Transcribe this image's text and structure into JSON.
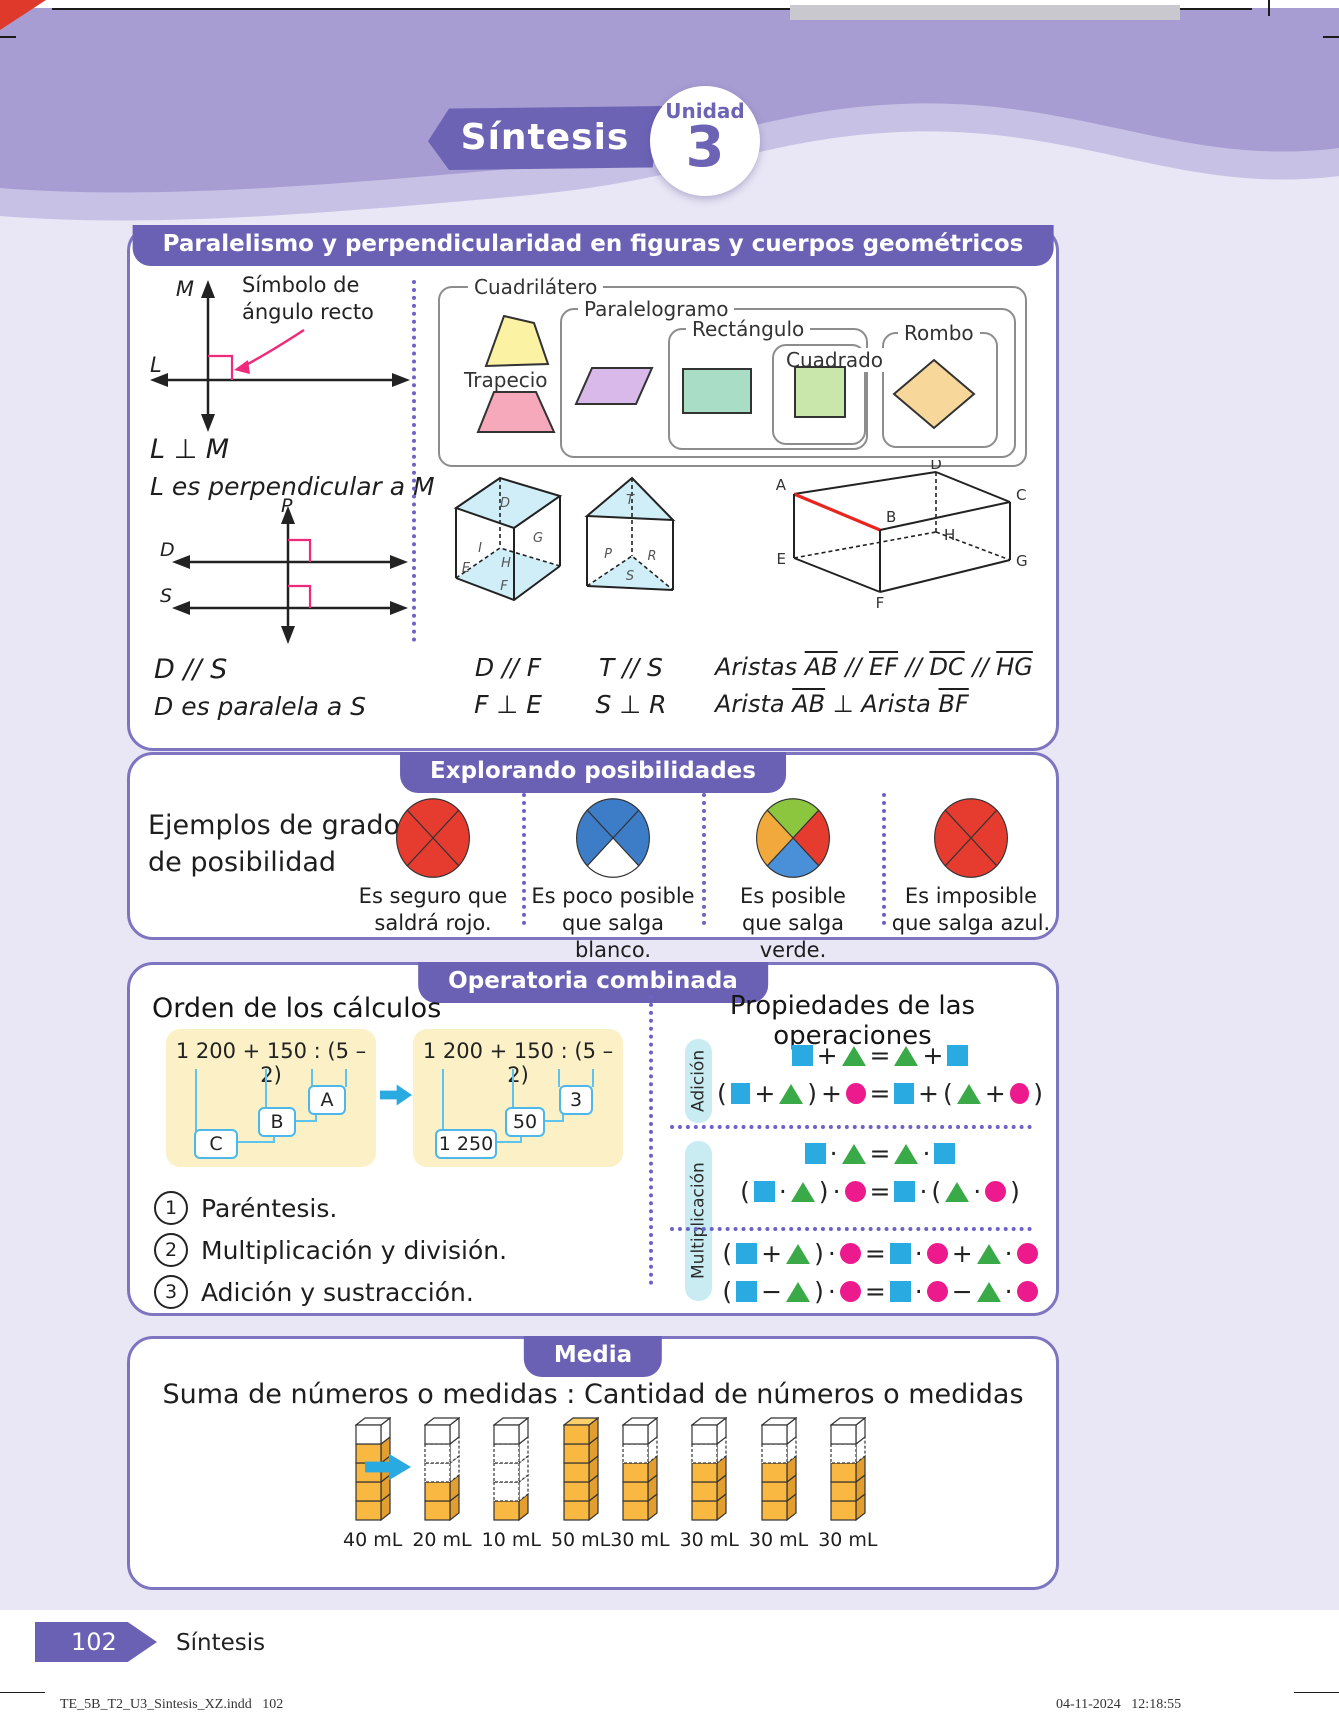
{
  "header": {
    "banner": "Síntesis",
    "unit_label": "Unidad",
    "unit_number": "3"
  },
  "section_geometry": {
    "title": "Paralelismo y perpendicularidad en figuras y cuerpos geométricos",
    "perp": {
      "m": "M",
      "l": "L",
      "ann1": "Símbolo de",
      "ann2": "ángulo recto",
      "relation": "L ⊥ M",
      "sentence": "L es perpendicular a M"
    },
    "para": {
      "p": "P",
      "d": "D",
      "s": "S",
      "relation": "D // S",
      "sentence": "D es paralela a S"
    },
    "classification": {
      "cuadrilatero": "Cuadrilátero",
      "trapecio": "Trapecio",
      "paralelogramo": "Paralelogramo",
      "rectangulo": "Rectángulo",
      "cuadrado": "Cuadrado",
      "rombo": "Rombo"
    },
    "cuboid": {
      "f_top": "D",
      "f_i": "I",
      "f_g": "G",
      "f_e": "E",
      "f_h": "H",
      "f_bottom": "F",
      "rel1": "D // F",
      "rel2": "F ⊥ E"
    },
    "triprism": {
      "f_top": "T",
      "f_p": "P",
      "f_r": "R",
      "f_bottom": "S",
      "rel1": "T // S",
      "rel2": "S ⊥ R"
    },
    "edgebox": {
      "a": "A",
      "b": "B",
      "c": "C",
      "d": "D",
      "e": "E",
      "f": "F",
      "g": "G",
      "h": "H",
      "highlight": "#e8251f",
      "label1": "Aristas",
      "e1": "AB",
      "par": "//",
      "e2": "EF",
      "e3": "DC",
      "e4": "HG",
      "label2a": "Arista",
      "e5": "AB",
      "perp": "⊥",
      "label2b": "Arista",
      "e6": "BF"
    }
  },
  "section_possibility": {
    "title": "Explorando posibilidades",
    "intro1": "Ejemplos de grados",
    "intro2": "de posibilidad",
    "spinners": [
      {
        "cap1": "Es seguro que",
        "cap2": "saldrá rojo.",
        "colors": {
          "top": "#e63c2f",
          "right": "#e63c2f",
          "bottom": "#e63c2f",
          "left": "#e63c2f"
        }
      },
      {
        "cap1": "Es poco posible",
        "cap2": "que salga blanco.",
        "colors": {
          "top": "#3d7dc8",
          "right": "#3d7dc8",
          "bottom": "#ffffff",
          "left": "#3d7dc8"
        }
      },
      {
        "cap1": "Es posible",
        "cap2": "que salga verde.",
        "colors": {
          "top": "#8cc63f",
          "right": "#e63c2f",
          "bottom": "#4a90d9",
          "left": "#f2a93b"
        }
      },
      {
        "cap1": "Es imposible",
        "cap2": "que salga azul.",
        "colors": {
          "top": "#e63c2f",
          "right": "#e63c2f",
          "bottom": "#e63c2f",
          "left": "#e63c2f"
        }
      }
    ]
  },
  "section_operations": {
    "title": "Operatoria combinada",
    "order_heading": "Orden de los cálculos",
    "expression": "1 200 + 150 : (5 – 2)",
    "letters": {
      "a": "A",
      "b": "B",
      "c": "C"
    },
    "values": {
      "a": "3",
      "b": "50",
      "c": "1 250"
    },
    "rules": [
      {
        "num": "1",
        "text": "Paréntesis."
      },
      {
        "num": "2",
        "text": "Multiplicación y división."
      },
      {
        "num": "3",
        "text": "Adición y sustracción."
      }
    ],
    "props_heading": "Propiedades de las operaciones",
    "label_addition": "Adición",
    "label_multiplication": "Multiplicación",
    "eq_add": [
      "S+T=T+S",
      "(S+T)+C=S+(T+C)"
    ],
    "eq_mul": [
      "S·T=T·S",
      "(S·T)·C=S·(T·C)"
    ],
    "eq_dist": [
      "(S+T)·C=S·C+T·C",
      "(S−T)·C=S·C−T·C"
    ],
    "shape_colors": {
      "square": "#29abe2",
      "triangle": "#3aaa49",
      "circle": "#ec1a8d"
    }
  },
  "section_media": {
    "title": "Media",
    "formula": "Suma de números o medidas : Cantidad de números o medidas",
    "left_towers": [
      {
        "label": "40 mL",
        "filled": 4,
        "total": 5
      },
      {
        "label": "20 mL",
        "filled": 2,
        "total": 5
      },
      {
        "label": "10 mL",
        "filled": 1,
        "total": 5
      },
      {
        "label": "50 mL",
        "filled": 5,
        "total": 5
      }
    ],
    "right_towers": [
      {
        "label": "30 mL",
        "filled": 3,
        "total": 5
      },
      {
        "label": "30 mL",
        "filled": 3,
        "total": 5
      },
      {
        "label": "30 mL",
        "filled": 3,
        "total": 5
      },
      {
        "label": "30 mL",
        "filled": 3,
        "total": 5
      }
    ]
  },
  "footer": {
    "page_number": "102",
    "label": "Síntesis",
    "print_left": "TE_5B_T2_U3_Sintesis_XZ.indd   102",
    "print_right": "04-11-2024   12:18:55"
  }
}
